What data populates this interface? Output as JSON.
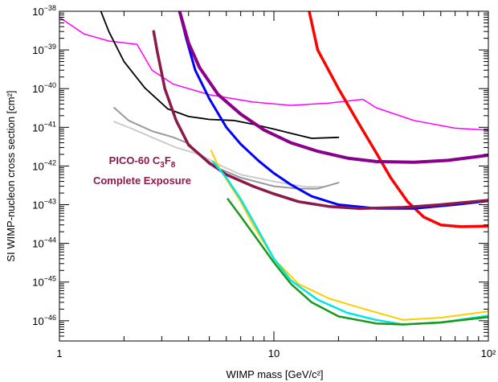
{
  "chart_data": {
    "type": "line",
    "xlabel": "WIMP mass [GeV/c²]",
    "ylabel": "SI WIMP-nucleon cross section [cm²]",
    "xscale": "log",
    "yscale": "log",
    "xlim": [
      1,
      100
    ],
    "ylim": [
      3e-47,
      1e-38
    ],
    "grid": false,
    "x_ticks": [
      {
        "value": 1,
        "label": "1"
      },
      {
        "value": 10,
        "label": "10"
      },
      {
        "value": 100,
        "label": "10²"
      }
    ],
    "y_ticks": [
      {
        "exp": -38,
        "base": "10",
        "sup": "−38"
      },
      {
        "exp": -39,
        "base": "10",
        "sup": "−39"
      },
      {
        "exp": -40,
        "base": "10",
        "sup": "−40"
      },
      {
        "exp": -41,
        "base": "10",
        "sup": "−41"
      },
      {
        "exp": -42,
        "base": "10",
        "sup": "−42"
      },
      {
        "exp": -43,
        "base": "10",
        "sup": "−43"
      },
      {
        "exp": -44,
        "base": "10",
        "sup": "−44"
      },
      {
        "exp": -45,
        "base": "10",
        "sup": "−45"
      },
      {
        "exp": -46,
        "base": "10",
        "sup": "−46"
      }
    ],
    "annotation": {
      "line1_prefix": "PICO-60 C",
      "line1_sub1": "3",
      "line1_mid": "F",
      "line1_sub2": "8",
      "line2": "Complete Exposure"
    },
    "series": [
      {
        "color": "#ff00ff",
        "width": 1.5,
        "points": [
          [
            1.0,
            7e-39
          ],
          [
            1.3,
            2.6e-39
          ],
          [
            1.7,
            1.7e-39
          ],
          [
            2.3,
            1.4e-39
          ],
          [
            2.7,
            3e-40
          ],
          [
            3.4,
            1.3e-40
          ],
          [
            5,
            7e-41
          ],
          [
            8,
            4.5e-41
          ],
          [
            12,
            3.7e-41
          ],
          [
            18,
            4.2e-41
          ],
          [
            26,
            5.3e-41
          ],
          [
            30,
            3.2e-41
          ],
          [
            45,
            1.5e-41
          ],
          [
            70,
            9.5e-42
          ],
          [
            100,
            8.5e-42
          ]
        ]
      },
      {
        "color": "#000000",
        "width": 1.8,
        "points": [
          [
            1.55,
            1.1e-38
          ],
          [
            1.7,
            3e-39
          ],
          [
            2.0,
            5e-40
          ],
          [
            2.5,
            1.05e-40
          ],
          [
            3.2,
            3e-41
          ],
          [
            4,
            1.9e-41
          ],
          [
            5,
            1.6e-41
          ],
          [
            6.5,
            1.5e-41
          ],
          [
            8,
            1.2e-41
          ],
          [
            10,
            9e-42
          ],
          [
            12,
            7e-42
          ],
          [
            15,
            5.2e-42
          ],
          [
            20,
            5.5e-42
          ]
        ]
      },
      {
        "color": "#cccccc",
        "width": 2,
        "points": [
          [
            1.8,
            1.4e-41
          ],
          [
            2.2,
            9e-42
          ],
          [
            2.7,
            5.5e-42
          ],
          [
            3.5,
            3e-42
          ],
          [
            4.5,
            2e-42
          ],
          [
            5.5,
            1.1e-42
          ],
          [
            7,
            6e-43
          ],
          [
            10,
            4e-43
          ],
          [
            14,
            2.9e-43
          ],
          [
            17,
            2.9e-43
          ]
        ]
      },
      {
        "color": "#999999",
        "width": 2,
        "points": [
          [
            1.8,
            3.2e-41
          ],
          [
            2.1,
            1.5e-41
          ],
          [
            2.7,
            8e-42
          ],
          [
            3.4,
            5.5e-42
          ],
          [
            4,
            3.8e-42
          ],
          [
            5,
            1.1e-42
          ],
          [
            7,
            5e-43
          ],
          [
            10,
            3e-43
          ],
          [
            13,
            2.6e-43
          ],
          [
            16,
            2.6e-43
          ],
          [
            20,
            3.7e-43
          ]
        ]
      },
      {
        "color": "#ff0000",
        "width": 3.5,
        "points": [
          [
            14.5,
            1.2e-38
          ],
          [
            16,
            1e-39
          ],
          [
            20,
            1e-40
          ],
          [
            25,
            1.2e-41
          ],
          [
            30,
            2.2e-42
          ],
          [
            35,
            5e-43
          ],
          [
            42,
            1.2e-43
          ],
          [
            50,
            4.8e-44
          ],
          [
            60,
            3e-44
          ],
          [
            75,
            2.7e-44
          ],
          [
            100,
            2.8e-44
          ]
        ]
      },
      {
        "color": "#0000ff",
        "width": 3,
        "points": [
          [
            3.6,
            1.2e-38
          ],
          [
            3.9,
            2e-39
          ],
          [
            4.3,
            3e-40
          ],
          [
            5,
            5.5e-41
          ],
          [
            6,
            1e-41
          ],
          [
            7,
            3.7e-42
          ],
          [
            8.5,
            1.35e-42
          ],
          [
            10,
            6.5e-43
          ],
          [
            12,
            3.3e-43
          ],
          [
            15,
            1.65e-43
          ],
          [
            20,
            1e-43
          ],
          [
            30,
            8e-44
          ],
          [
            45,
            8e-44
          ],
          [
            70,
            1e-43
          ],
          [
            100,
            1.25e-43
          ]
        ]
      },
      {
        "color": "#8b008b",
        "width": 4,
        "points": [
          [
            3.6,
            1.2e-38
          ],
          [
            4,
            1.5e-39
          ],
          [
            4.5,
            3.5e-40
          ],
          [
            5.5,
            7e-41
          ],
          [
            7,
            2.2e-41
          ],
          [
            9,
            8.5e-42
          ],
          [
            12,
            4e-42
          ],
          [
            16,
            2.4e-42
          ],
          [
            22,
            1.6e-42
          ],
          [
            30,
            1.3e-42
          ],
          [
            45,
            1.25e-42
          ],
          [
            65,
            1.4e-42
          ],
          [
            100,
            1.9e-42
          ]
        ]
      },
      {
        "color": "#8b1a4a",
        "width": 3.5,
        "points": [
          [
            2.75,
            3e-39
          ],
          [
            2.85,
            1e-39
          ],
          [
            3.1,
            1e-40
          ],
          [
            3.5,
            1.5e-41
          ],
          [
            4,
            3.5e-42
          ],
          [
            5,
            1.2e-42
          ],
          [
            6,
            6e-43
          ],
          [
            8,
            3e-43
          ],
          [
            10,
            1.9e-43
          ],
          [
            13,
            1.2e-43
          ],
          [
            18,
            9e-44
          ],
          [
            25,
            8e-44
          ],
          [
            40,
            8.5e-44
          ],
          [
            60,
            1e-43
          ],
          [
            100,
            1.3e-43
          ]
        ]
      },
      {
        "color": "#ffcc00",
        "width": 2,
        "points": [
          [
            5.1,
            2.5e-42
          ],
          [
            5.5,
            1e-42
          ],
          [
            6,
            4.5e-43
          ],
          [
            7,
            1.2e-43
          ],
          [
            8,
            3e-44
          ],
          [
            10,
            4e-45
          ],
          [
            13,
            9e-46
          ],
          [
            18,
            3.8e-46
          ],
          [
            25,
            2.2e-46
          ],
          [
            40,
            1.05e-46
          ],
          [
            60,
            1.2e-46
          ],
          [
            100,
            1.75e-46
          ]
        ]
      },
      {
        "color": "#00e5e5",
        "width": 2.5,
        "points": [
          [
            5.2,
            1.3e-42
          ],
          [
            6,
            5e-43
          ],
          [
            7,
            1.4e-43
          ],
          [
            8,
            3.8e-44
          ],
          [
            10,
            4e-45
          ],
          [
            12,
            1.1e-45
          ],
          [
            16,
            3.5e-46
          ],
          [
            22,
            1.6e-46
          ],
          [
            30,
            1.05e-46
          ],
          [
            40,
            8e-47
          ],
          [
            60,
            9e-47
          ],
          [
            100,
            1.35e-46
          ]
        ]
      },
      {
        "color": "#1a9a1a",
        "width": 2.5,
        "points": [
          [
            6.1,
            1.4e-43
          ],
          [
            7,
            5e-44
          ],
          [
            8,
            1.8e-44
          ],
          [
            10,
            3.2e-45
          ],
          [
            12,
            9e-46
          ],
          [
            15,
            3e-46
          ],
          [
            20,
            1.3e-46
          ],
          [
            30,
            8.5e-47
          ],
          [
            40,
            8e-47
          ],
          [
            60,
            9e-47
          ],
          [
            100,
            1.25e-46
          ]
        ]
      }
    ]
  }
}
